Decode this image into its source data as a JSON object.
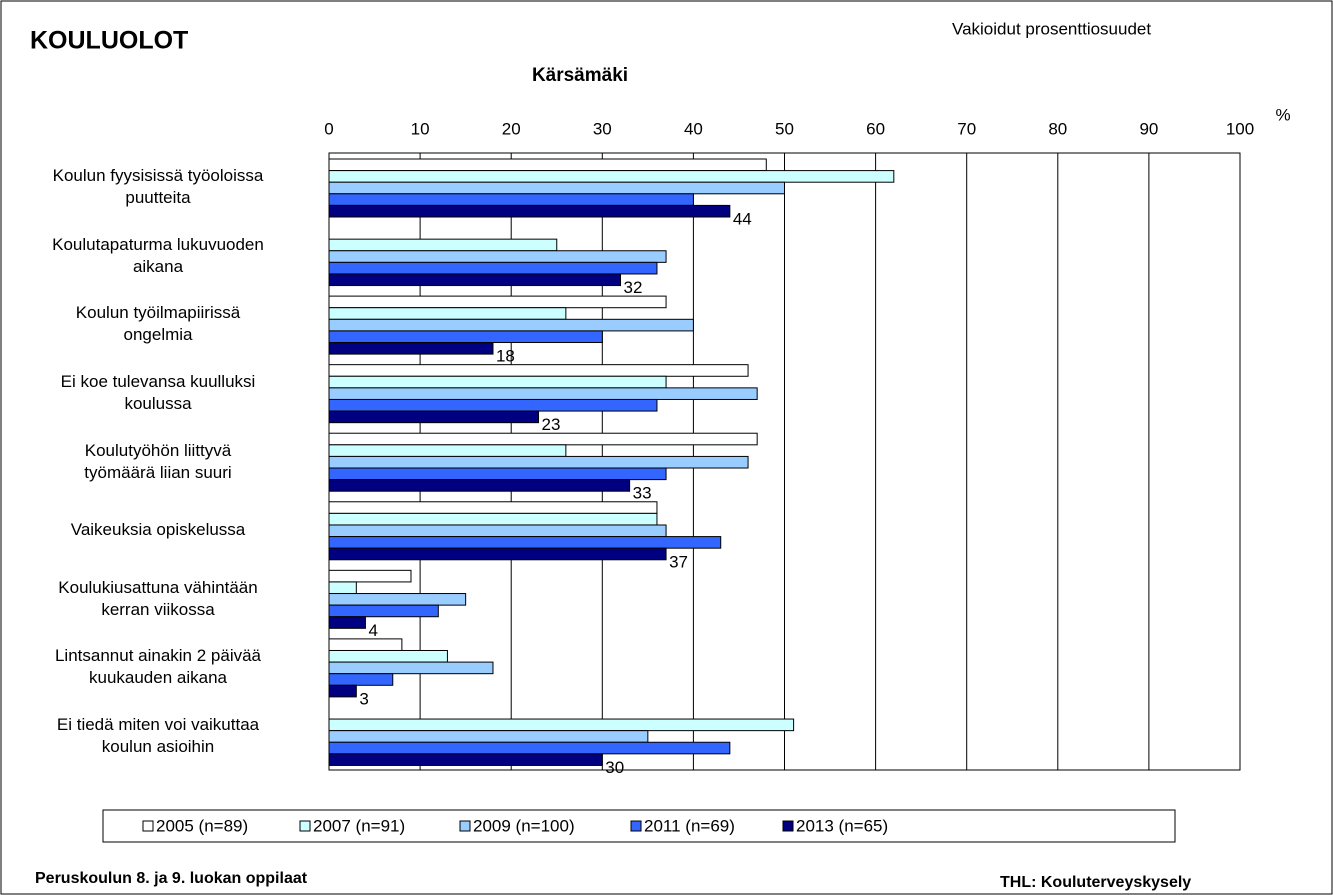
{
  "chart_data": {
    "type": "hbar",
    "title": "KOULUOLOT",
    "subtitle": "Kärsämäki",
    "note": "Vakioidut prosenttiosuudet",
    "xlabel": "%",
    "footer_left": "Peruskoulun 8. ja 9. luokan oppilaat",
    "footer_right": "THL: Kouluterveyskysely",
    "categories": [
      "Koulun fyysisissä työoloissa\npuutteita",
      "Koulutapaturma lukuvuoden\naikana",
      "Koulun työilmapiirissä\nongelmia",
      "Ei koe tulevansa kuulluksi\nkoulussa",
      "Koulutyöhön liittyvä\ntyömäärä liian suuri",
      "Vaikeuksia opiskelussa",
      "Koulukiusattuna vähintään\nkerran viikossa",
      "Lintsannut ainakin 2 päivää\nkuukauden aikana",
      "Ei tiedä miten voi vaikuttaa\nkoulun asioihin"
    ],
    "series": [
      {
        "name": "2005 (n=89)",
        "color": "#ffffff",
        "values": [
          48,
          null,
          37,
          46,
          47,
          36,
          9,
          8,
          null
        ]
      },
      {
        "name": "2007 (n=91)",
        "color": "#ccffff",
        "values": [
          62,
          25,
          26,
          37,
          26,
          36,
          3,
          13,
          51
        ]
      },
      {
        "name": "2009 (n=100)",
        "color": "#99ccff",
        "values": [
          50,
          37,
          40,
          47,
          46,
          37,
          15,
          18,
          35
        ]
      },
      {
        "name": "2011 (n=69)",
        "color": "#3366ff",
        "values": [
          40,
          36,
          30,
          36,
          37,
          43,
          12,
          7,
          44
        ]
      },
      {
        "name": "2013 (n=65)",
        "color": "#000080",
        "values": [
          44,
          32,
          18,
          23,
          33,
          37,
          4,
          3,
          30
        ],
        "show_labels": true
      }
    ],
    "xlim": [
      0,
      100
    ],
    "xticks": [
      0,
      10,
      20,
      30,
      40,
      50,
      60,
      70,
      80,
      90,
      100
    ],
    "grid": true,
    "legend": "bottom"
  }
}
